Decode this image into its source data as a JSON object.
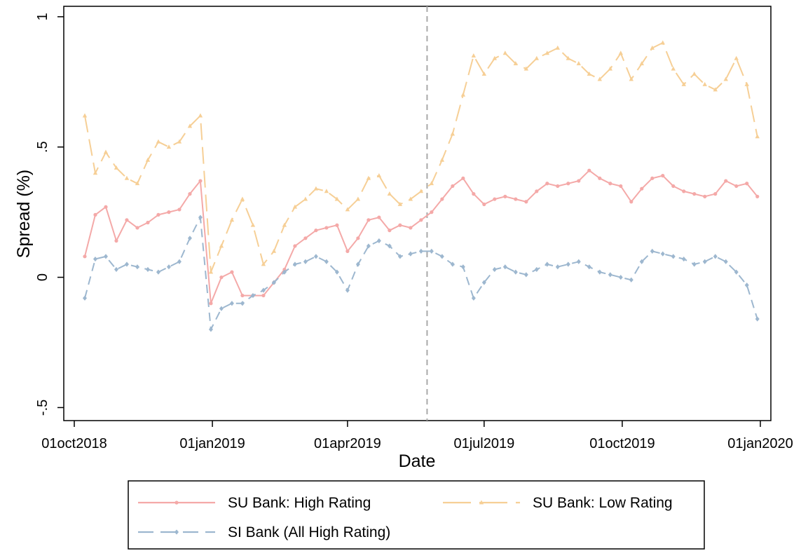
{
  "chart_data": {
    "type": "line",
    "title": "",
    "xlabel": "Date",
    "ylabel": "Spread (%)",
    "x_tick_labels": [
      "01oct2018",
      "01jan2019",
      "01apr2019",
      "01jul2019",
      "01oct2019",
      "01jan2020"
    ],
    "x_ticks": [
      "2018-10-01",
      "2019-01-01",
      "2019-04-01",
      "2019-07-01",
      "2019-10-01",
      "2020-01-01"
    ],
    "xlim": [
      "2018-09-24",
      "2020-01-08"
    ],
    "y_tick_labels": [
      "-.5",
      "0",
      ".5",
      "1"
    ],
    "y_ticks": [
      -0.5,
      0,
      0.5,
      1
    ],
    "ylim": [
      -0.55,
      1.04
    ],
    "vline": {
      "x": "2019-05-24",
      "style": "dashed"
    },
    "grid": false,
    "legend_position": "bottom",
    "x": [
      "2018-10-08",
      "2018-10-15",
      "2018-10-22",
      "2018-10-29",
      "2018-11-05",
      "2018-11-12",
      "2018-11-19",
      "2018-11-26",
      "2018-12-03",
      "2018-12-10",
      "2018-12-17",
      "2018-12-24",
      "2018-12-31",
      "2019-01-07",
      "2019-01-14",
      "2019-01-21",
      "2019-01-28",
      "2019-02-04",
      "2019-02-11",
      "2019-02-18",
      "2019-02-25",
      "2019-03-04",
      "2019-03-11",
      "2019-03-18",
      "2019-03-25",
      "2019-04-01",
      "2019-04-08",
      "2019-04-15",
      "2019-04-22",
      "2019-04-29",
      "2019-05-06",
      "2019-05-13",
      "2019-05-20",
      "2019-05-27",
      "2019-06-03",
      "2019-06-10",
      "2019-06-17",
      "2019-06-24",
      "2019-07-01",
      "2019-07-08",
      "2019-07-15",
      "2019-07-22",
      "2019-07-29",
      "2019-08-05",
      "2019-08-12",
      "2019-08-19",
      "2019-08-26",
      "2019-09-02",
      "2019-09-09",
      "2019-09-16",
      "2019-09-23",
      "2019-09-30",
      "2019-10-07",
      "2019-10-14",
      "2019-10-21",
      "2019-10-28",
      "2019-11-04",
      "2019-11-11",
      "2019-11-18",
      "2019-11-25",
      "2019-12-02",
      "2019-12-09",
      "2019-12-16",
      "2019-12-23",
      "2019-12-30"
    ],
    "series": [
      {
        "name": "SU Bank: High Rating",
        "color": "#f4a9a8",
        "marker": "circle",
        "dash": "solid",
        "values": [
          0.08,
          0.24,
          0.27,
          0.14,
          0.22,
          0.19,
          0.21,
          0.24,
          0.25,
          0.26,
          0.32,
          0.37,
          -0.1,
          0.0,
          0.02,
          -0.07,
          -0.07,
          -0.07,
          -0.02,
          0.03,
          0.12,
          0.15,
          0.18,
          0.19,
          0.2,
          0.1,
          0.15,
          0.22,
          0.23,
          0.18,
          0.2,
          0.19,
          0.22,
          0.25,
          0.3,
          0.35,
          0.38,
          0.32,
          0.28,
          0.3,
          0.31,
          0.3,
          0.29,
          0.33,
          0.36,
          0.35,
          0.36,
          0.37,
          0.41,
          0.38,
          0.36,
          0.35,
          0.29,
          0.34,
          0.38,
          0.39,
          0.35,
          0.33,
          0.32,
          0.31,
          0.32,
          0.37,
          0.35,
          0.36,
          0.31
        ]
      },
      {
        "name": "SU Bank: Low Rating",
        "color": "#f6cf96",
        "marker": "triangle",
        "dash": "long-dash",
        "values": [
          0.62,
          0.4,
          0.48,
          0.42,
          0.38,
          0.36,
          0.45,
          0.52,
          0.5,
          0.52,
          0.58,
          0.62,
          0.02,
          0.12,
          0.22,
          0.3,
          0.2,
          0.05,
          0.1,
          0.2,
          0.27,
          0.3,
          0.34,
          0.33,
          0.3,
          0.26,
          0.3,
          0.38,
          0.39,
          0.32,
          0.28,
          0.3,
          0.33,
          0.36,
          0.45,
          0.55,
          0.7,
          0.85,
          0.78,
          0.84,
          0.86,
          0.82,
          0.8,
          0.84,
          0.86,
          0.88,
          0.84,
          0.82,
          0.78,
          0.76,
          0.8,
          0.86,
          0.76,
          0.82,
          0.88,
          0.9,
          0.8,
          0.74,
          0.78,
          0.74,
          0.72,
          0.76,
          0.84,
          0.74,
          0.54
        ]
      },
      {
        "name": "SI Bank (All High Rating)",
        "color": "#9db7cf",
        "marker": "diamond",
        "dash": "dash",
        "values": [
          -0.08,
          0.07,
          0.08,
          0.03,
          0.05,
          0.04,
          0.03,
          0.02,
          0.04,
          0.06,
          0.15,
          0.23,
          -0.2,
          -0.12,
          -0.1,
          -0.1,
          -0.07,
          -0.05,
          -0.02,
          0.02,
          0.05,
          0.06,
          0.08,
          0.06,
          0.02,
          -0.05,
          0.05,
          0.12,
          0.14,
          0.12,
          0.08,
          0.09,
          0.1,
          0.1,
          0.08,
          0.05,
          0.04,
          -0.08,
          -0.02,
          0.03,
          0.04,
          0.02,
          0.01,
          0.03,
          0.05,
          0.04,
          0.05,
          0.06,
          0.04,
          0.02,
          0.01,
          0.0,
          -0.01,
          0.06,
          0.1,
          0.09,
          0.08,
          0.07,
          0.05,
          0.06,
          0.08,
          0.06,
          0.02,
          -0.03,
          -0.16
        ]
      }
    ]
  }
}
